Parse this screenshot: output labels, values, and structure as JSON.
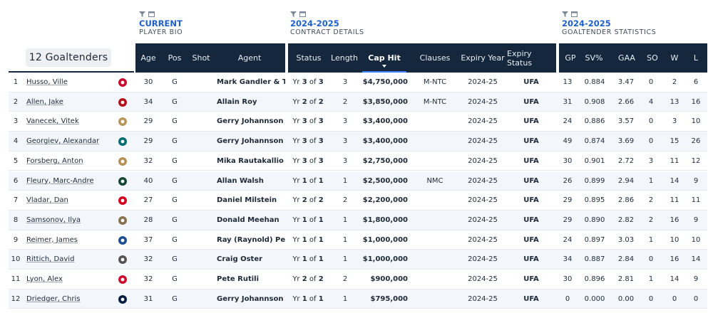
{
  "groups": {
    "bio": {
      "title": "CURRENT",
      "subtitle": "PLAYER BIO"
    },
    "contract": {
      "title": "2024-2025",
      "subtitle": "CONTRACT DETAILS"
    },
    "stats": {
      "title": "2024-2025",
      "subtitle": "GOALTENDER STATISTICS"
    }
  },
  "count_label": "12 Goaltenders",
  "headers": {
    "age": "Age",
    "pos": "Pos",
    "shot": "Shot",
    "agent": "Agent",
    "status": "Status",
    "length": "Length",
    "cap_hit": "Cap Hit",
    "clauses": "Clauses",
    "expiry_year": "Expiry Year",
    "expiry_status": "Expiry Status",
    "gp": "GP",
    "svp": "SV%",
    "gaa": "GAA",
    "so": "SO",
    "w": "W",
    "l": "L"
  },
  "sorted_column": "cap_hit",
  "colors": {
    "header_bg": "#14273d",
    "accent": "#1f5fc8",
    "ufa": "#d4202a"
  },
  "rows": [
    {
      "rank": "1",
      "name": "Husso, Ville",
      "team_icon": "red-wings-logo",
      "age": "30",
      "pos": "G",
      "shot": "",
      "agent": "Mark Gandler & T...",
      "yr_label": "Yr",
      "yr_cur": "3",
      "yr_of": "of",
      "yr_tot": "3",
      "length": "3",
      "cap_hit": "$4,750,000",
      "clauses": "M-NTC",
      "expiry_year": "2024-25",
      "expiry_status": "UFA",
      "gp": "13",
      "svp": "0.884",
      "gaa": "3.47",
      "so": "0",
      "w": "2",
      "l": "6"
    },
    {
      "rank": "2",
      "name": "Allen, Jake",
      "team_icon": "devils-logo",
      "age": "34",
      "pos": "G",
      "shot": "",
      "agent": "Allain Roy",
      "yr_label": "Yr",
      "yr_cur": "2",
      "yr_of": "of",
      "yr_tot": "2",
      "length": "2",
      "cap_hit": "$3,850,000",
      "clauses": "M-NTC",
      "expiry_year": "2024-25",
      "expiry_status": "UFA",
      "gp": "31",
      "svp": "0.908",
      "gaa": "2.66",
      "so": "4",
      "w": "13",
      "l": "16"
    },
    {
      "rank": "3",
      "name": "Vanecek, Vitek",
      "team_icon": "panthers-logo",
      "age": "29",
      "pos": "G",
      "shot": "",
      "agent": "Gerry Johannson",
      "yr_label": "Yr",
      "yr_cur": "3",
      "yr_of": "of",
      "yr_tot": "3",
      "length": "3",
      "cap_hit": "$3,400,000",
      "clauses": "",
      "expiry_year": "2024-25",
      "expiry_status": "UFA",
      "gp": "24",
      "svp": "0.886",
      "gaa": "3.57",
      "so": "0",
      "w": "3",
      "l": "10"
    },
    {
      "rank": "4",
      "name": "Georgiev, Alexandar",
      "team_icon": "sharks-logo",
      "age": "29",
      "pos": "G",
      "shot": "",
      "agent": "Gerry Johannson",
      "yr_label": "Yr",
      "yr_cur": "3",
      "yr_of": "of",
      "yr_tot": "3",
      "length": "3",
      "cap_hit": "$3,400,000",
      "clauses": "",
      "expiry_year": "2024-25",
      "expiry_status": "UFA",
      "gp": "49",
      "svp": "0.874",
      "gaa": "3.69",
      "so": "0",
      "w": "15",
      "l": "26"
    },
    {
      "rank": "5",
      "name": "Forsberg, Anton",
      "team_icon": "senators-logo",
      "age": "32",
      "pos": "G",
      "shot": "",
      "agent": "Mika Rautakallio",
      "yr_label": "Yr",
      "yr_cur": "3",
      "yr_of": "of",
      "yr_tot": "3",
      "length": "3",
      "cap_hit": "$2,750,000",
      "clauses": "",
      "expiry_year": "2024-25",
      "expiry_status": "UFA",
      "gp": "30",
      "svp": "0.901",
      "gaa": "2.72",
      "so": "3",
      "w": "11",
      "l": "12"
    },
    {
      "rank": "6",
      "name": "Fleury, Marc-Andre",
      "team_icon": "wild-logo",
      "age": "40",
      "pos": "G",
      "shot": "",
      "agent": "Allan Walsh",
      "yr_label": "Yr",
      "yr_cur": "1",
      "yr_of": "of",
      "yr_tot": "1",
      "length": "1",
      "cap_hit": "$2,500,000",
      "clauses": "NMC",
      "expiry_year": "2024-25",
      "expiry_status": "UFA",
      "gp": "26",
      "svp": "0.899",
      "gaa": "2.94",
      "so": "1",
      "w": "14",
      "l": "9"
    },
    {
      "rank": "7",
      "name": "Vladar, Dan",
      "team_icon": "flames-logo",
      "age": "27",
      "pos": "G",
      "shot": "",
      "agent": "Daniel Milstein",
      "yr_label": "Yr",
      "yr_cur": "2",
      "yr_of": "of",
      "yr_tot": "2",
      "length": "2",
      "cap_hit": "$2,200,000",
      "clauses": "",
      "expiry_year": "2024-25",
      "expiry_status": "UFA",
      "gp": "29",
      "svp": "0.895",
      "gaa": "2.86",
      "so": "2",
      "w": "11",
      "l": "11"
    },
    {
      "rank": "8",
      "name": "Samsonov, Ilya",
      "team_icon": "golden-knights-logo",
      "age": "28",
      "pos": "G",
      "shot": "",
      "agent": "Donald Meehan",
      "yr_label": "Yr",
      "yr_cur": "1",
      "yr_of": "of",
      "yr_tot": "1",
      "length": "1",
      "cap_hit": "$1,800,000",
      "clauses": "",
      "expiry_year": "2024-25",
      "expiry_status": "UFA",
      "gp": "29",
      "svp": "0.890",
      "gaa": "2.82",
      "so": "2",
      "w": "16",
      "l": "9"
    },
    {
      "rank": "9",
      "name": "Reimer, James",
      "team_icon": "sabres-logo",
      "age": "37",
      "pos": "G",
      "shot": "",
      "agent": "Ray (Raynold) Pet...",
      "yr_label": "Yr",
      "yr_cur": "1",
      "yr_of": "of",
      "yr_tot": "1",
      "length": "1",
      "cap_hit": "$1,000,000",
      "clauses": "",
      "expiry_year": "2024-25",
      "expiry_status": "UFA",
      "gp": "24",
      "svp": "0.897",
      "gaa": "3.03",
      "so": "1",
      "w": "10",
      "l": "10"
    },
    {
      "rank": "10",
      "name": "Rittich, David",
      "team_icon": "kings-logo",
      "age": "32",
      "pos": "G",
      "shot": "",
      "agent": "Craig Oster",
      "yr_label": "Yr",
      "yr_cur": "1",
      "yr_of": "of",
      "yr_tot": "1",
      "length": "1",
      "cap_hit": "$1,000,000",
      "clauses": "",
      "expiry_year": "2024-25",
      "expiry_status": "UFA",
      "gp": "34",
      "svp": "0.887",
      "gaa": "2.84",
      "so": "0",
      "w": "16",
      "l": "14"
    },
    {
      "rank": "11",
      "name": "Lyon, Alex",
      "team_icon": "red-wings-logo",
      "age": "32",
      "pos": "G",
      "shot": "",
      "agent": "Pete Rutili",
      "yr_label": "Yr",
      "yr_cur": "2",
      "yr_of": "of",
      "yr_tot": "2",
      "length": "2",
      "cap_hit": "$900,000",
      "clauses": "",
      "expiry_year": "2024-25",
      "expiry_status": "UFA",
      "gp": "30",
      "svp": "0.896",
      "gaa": "2.81",
      "so": "1",
      "w": "14",
      "l": "9"
    },
    {
      "rank": "12",
      "name": "Driedger, Chris",
      "team_icon": "jets-logo",
      "age": "31",
      "pos": "G",
      "shot": "",
      "agent": "Gerry Johannson",
      "yr_label": "Yr",
      "yr_cur": "1",
      "yr_of": "of",
      "yr_tot": "1",
      "length": "1",
      "cap_hit": "$795,000",
      "clauses": "",
      "expiry_year": "2024-25",
      "expiry_status": "UFA",
      "gp": "0",
      "svp": "0.000",
      "gaa": "0.00",
      "so": "0",
      "w": "0",
      "l": "0"
    }
  ]
}
